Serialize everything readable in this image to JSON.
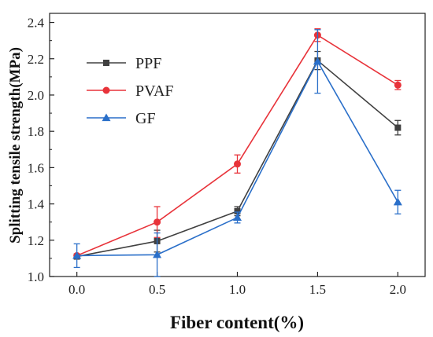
{
  "chart_data": {
    "type": "line",
    "title": "",
    "xlabel": "Fiber content(%)",
    "ylabel": "Splitting tensile strength(MPa)",
    "x": [
      0.0,
      0.5,
      1.0,
      1.5,
      2.0
    ],
    "x_tick_labels": [
      "0.0",
      "0.5",
      "1.0",
      "1.5",
      "2.0"
    ],
    "y_tick_labels": [
      "1.0",
      "1.2",
      "1.4",
      "1.6",
      "1.8",
      "2.0",
      "2.2",
      "2.4"
    ],
    "xlim": [
      -0.17,
      2.17
    ],
    "ylim": [
      1.0,
      2.45
    ],
    "grid": false,
    "legend_position": "top-left",
    "series": [
      {
        "name": "PPF",
        "color": "#404040",
        "marker": "square",
        "values": [
          1.11,
          1.195,
          1.36,
          2.19,
          1.82
        ],
        "errors": [
          0.0,
          0.06,
          0.025,
          0.05,
          0.04
        ]
      },
      {
        "name": "PVAF",
        "color": "#e8333a",
        "marker": "circle",
        "values": [
          1.115,
          1.3,
          1.62,
          2.33,
          2.055
        ],
        "errors": [
          0.0,
          0.085,
          0.05,
          0.035,
          0.025
        ]
      },
      {
        "name": "GF",
        "color": "#2a6fc9",
        "marker": "triangle",
        "values": [
          1.115,
          1.12,
          1.325,
          2.185,
          1.41
        ],
        "errors": [
          0.065,
          0.12,
          0.03,
          0.175,
          0.065
        ]
      }
    ]
  }
}
